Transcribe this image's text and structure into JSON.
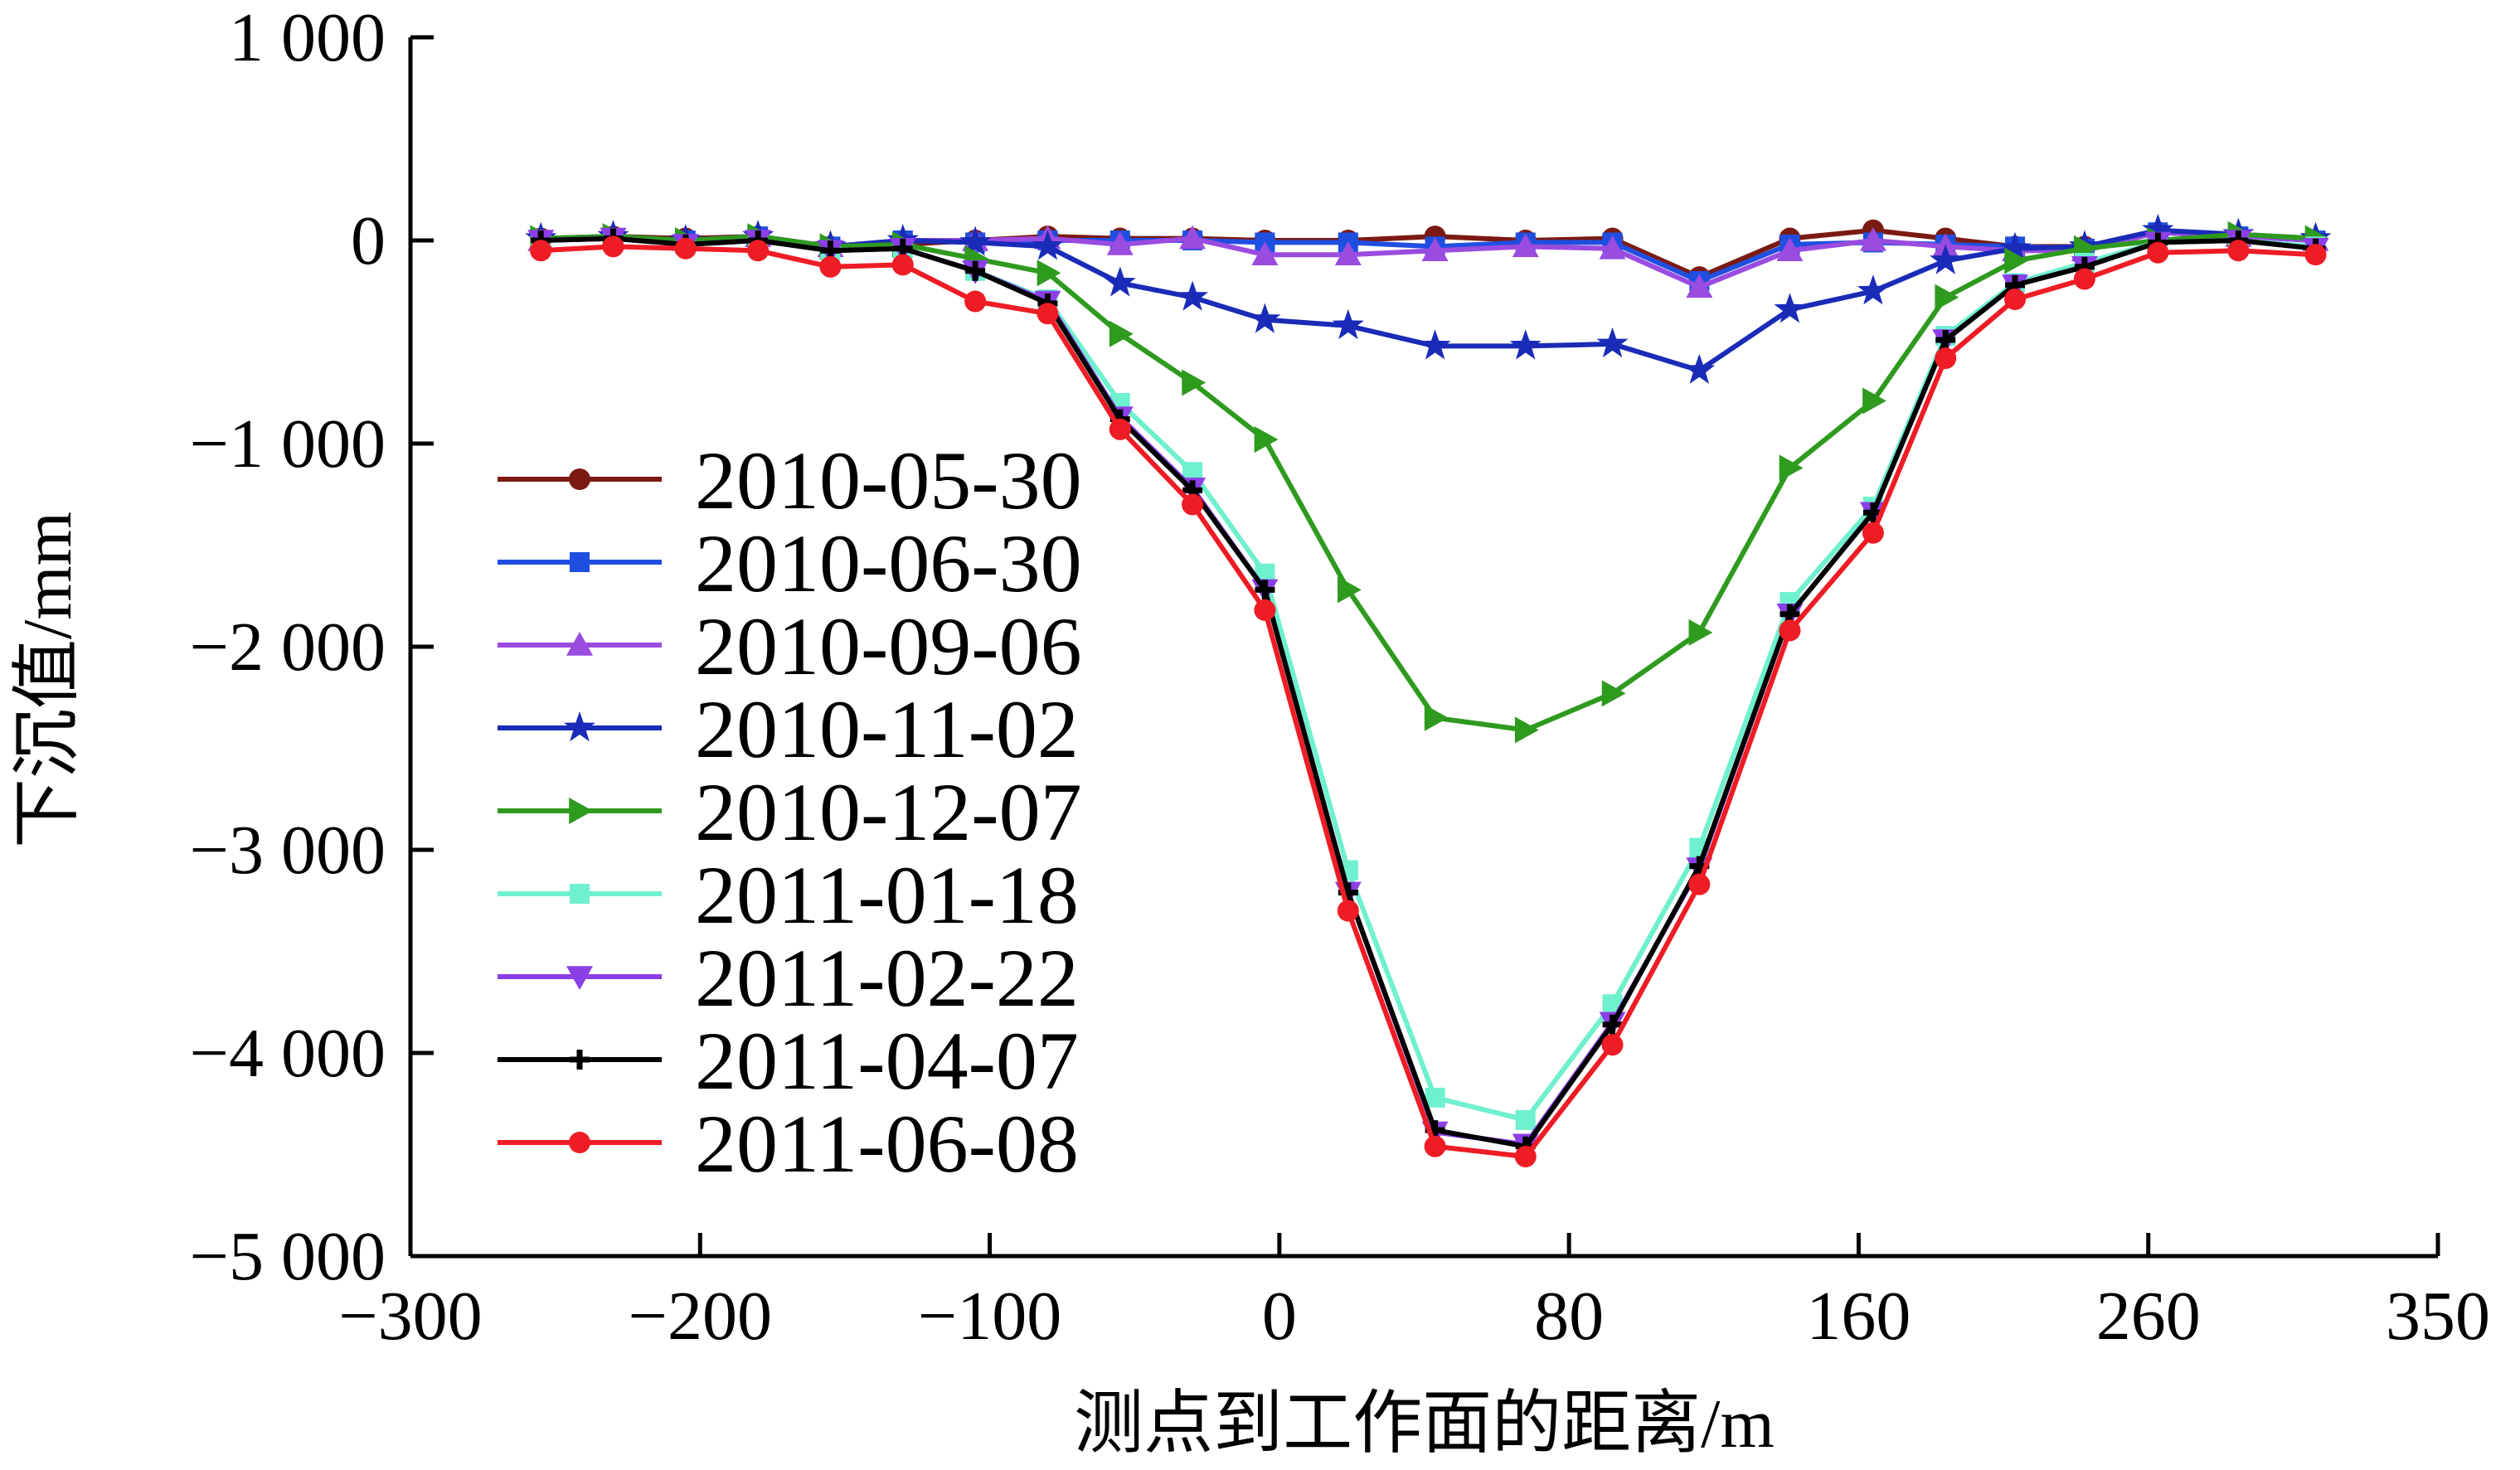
{
  "chart_data": {
    "type": "line",
    "xlabel": "测点到工作面的距离/m",
    "ylabel": "下沉值/mm",
    "xlim": [
      -300,
      350
    ],
    "ylim": [
      -5000,
      1000
    ],
    "x_ticks": [
      -300,
      -200,
      -100,
      0,
      80,
      160,
      260,
      350
    ],
    "x_tick_labels": [
      "−300",
      "−200",
      "−100",
      "0",
      "80",
      "160",
      "260",
      "350"
    ],
    "y_ticks": [
      1000,
      0,
      -1000,
      -2000,
      -3000,
      -4000,
      -5000
    ],
    "y_tick_labels": [
      "1 000",
      "0",
      "−1 000",
      "−2 000",
      "−3 000",
      "−4 000",
      "−5 000"
    ],
    "grid": false,
    "legend_position": "left",
    "x": [
      -255,
      -230,
      -205,
      -180,
      -155,
      -130,
      -105,
      -80,
      -55,
      -30,
      -5,
      19,
      43,
      68,
      92,
      116,
      141,
      165,
      190,
      214,
      238,
      263,
      288,
      312
    ],
    "series": [
      {
        "name": "2010-05-30",
        "color": "#7b1a12",
        "marker": "circle",
        "values": [
          10,
          20,
          10,
          20,
          -30,
          -20,
          0,
          20,
          10,
          10,
          0,
          0,
          20,
          0,
          10,
          -180,
          10,
          50,
          10,
          -30,
          -30,
          40,
          20,
          0
        ]
      },
      {
        "name": "2010-06-30",
        "color": "#1f4fe0",
        "marker": "square",
        "values": [
          0,
          10,
          0,
          20,
          -30,
          0,
          -10,
          0,
          0,
          0,
          -10,
          -10,
          -30,
          -10,
          -10,
          -200,
          -20,
          -10,
          -20,
          -30,
          -40,
          40,
          20,
          0
        ]
      },
      {
        "name": "2010-09-06",
        "color": "#9a4be0",
        "marker": "triangle-up",
        "values": [
          0,
          10,
          0,
          20,
          -30,
          0,
          0,
          10,
          -20,
          10,
          -70,
          -70,
          -50,
          -30,
          -40,
          -230,
          -50,
          0,
          -30,
          -50,
          -50,
          40,
          20,
          0
        ]
      },
      {
        "name": "2010-11-02",
        "color": "#1a2bb8",
        "marker": "star",
        "values": [
          10,
          20,
          0,
          20,
          -30,
          0,
          -10,
          -30,
          -210,
          -280,
          -390,
          -420,
          -520,
          -520,
          -510,
          -640,
          -340,
          -250,
          -100,
          -40,
          -30,
          50,
          30,
          10
        ]
      },
      {
        "name": "2010-12-07",
        "color": "#2e9a1e",
        "marker": "triangle-right",
        "values": [
          10,
          20,
          0,
          20,
          -30,
          -20,
          -90,
          -160,
          -460,
          -700,
          -980,
          -1720,
          -2350,
          -2410,
          -2230,
          -1930,
          -1120,
          -790,
          -280,
          -100,
          -40,
          0,
          30,
          10
        ]
      },
      {
        "name": "2011-01-18",
        "color": "#6ff0cf",
        "marker": "square",
        "values": [
          0,
          10,
          -20,
          0,
          -50,
          -40,
          -150,
          -290,
          -800,
          -1140,
          -1640,
          -3100,
          -4220,
          -4330,
          -3760,
          -2990,
          -1780,
          -1310,
          -470,
          -210,
          -110,
          -10,
          0,
          -30
        ]
      },
      {
        "name": "2011-02-22",
        "color": "#8b3fe6",
        "marker": "triangle-down",
        "values": [
          0,
          10,
          -20,
          0,
          -50,
          -40,
          -150,
          -300,
          -870,
          -1220,
          -1720,
          -3210,
          -4390,
          -4450,
          -3850,
          -3090,
          -1840,
          -1340,
          -490,
          -220,
          -130,
          -10,
          0,
          -40
        ]
      },
      {
        "name": "2011-04-07",
        "color": "#000000",
        "marker": "plus",
        "values": [
          0,
          10,
          -20,
          0,
          -50,
          -40,
          -150,
          -310,
          -880,
          -1230,
          -1720,
          -3210,
          -4380,
          -4460,
          -3860,
          -3080,
          -1840,
          -1340,
          -490,
          -220,
          -130,
          -10,
          0,
          -40
        ]
      },
      {
        "name": "2011-06-08",
        "color": "#ee1c25",
        "marker": "circle",
        "values": [
          -50,
          -30,
          -40,
          -50,
          -130,
          -120,
          -300,
          -360,
          -930,
          -1300,
          -1820,
          -3300,
          -4460,
          -4510,
          -3960,
          -3170,
          -1920,
          -1440,
          -580,
          -290,
          -190,
          -60,
          -50,
          -70
        ]
      }
    ]
  }
}
